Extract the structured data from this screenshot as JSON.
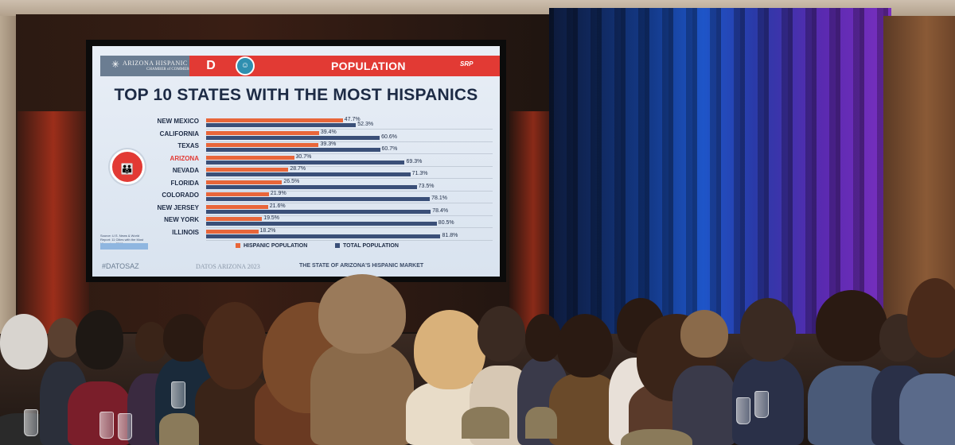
{
  "slide": {
    "org_name": "ARIZONA HISPANIC",
    "org_sub": "CHAMBER of COMMERCE",
    "section": "POPULATION",
    "sponsor": "SRP",
    "title": "TOP 10 STATES WITH THE MOST HISPANICS",
    "hashtag": "#DATOSAZ",
    "event": "DATOS ARIZONA 2023",
    "event_sub": "THE STATE OF ARIZONA'S HISPANIC MARKET",
    "source_note": "Source: U.S. News & World Report: 11 Cities with the Most Hispanics, 2018",
    "highlight_color": "#e23a34",
    "hispanic_color": "#e8663a",
    "total_color": "#3a4f78"
  },
  "chart_data": {
    "type": "bar",
    "orientation": "horizontal",
    "title": "TOP 10 STATES WITH THE MOST HISPANICS",
    "categories": [
      "NEW MEXICO",
      "CALIFORNIA",
      "TEXAS",
      "ARIZONA",
      "NEVADA",
      "FLORIDA",
      "COLORADO",
      "NEW JERSEY",
      "NEW YORK",
      "ILLINOIS"
    ],
    "highlight_category": "ARIZONA",
    "series": [
      {
        "name": "HISPANIC POPULATION",
        "values": [
          47.7,
          39.4,
          39.3,
          30.7,
          28.7,
          26.5,
          21.9,
          21.6,
          19.5,
          18.2
        ],
        "labels": [
          "47.7%",
          "39.4%",
          "39.3%",
          "30.7%",
          "28.7%",
          "26.5%",
          "21.9%",
          "21.6%",
          "19.5%",
          "18.2%"
        ]
      },
      {
        "name": "TOTAL POPULATION",
        "values": [
          52.3,
          60.6,
          60.7,
          69.3,
          71.3,
          73.5,
          78.1,
          78.4,
          80.5,
          81.8
        ],
        "labels": [
          "52.3%",
          "60.6%",
          "60.7%",
          "69.3%",
          "71.3%",
          "73.5%",
          "78.1%",
          "78.4%",
          "80.5%",
          "81.8%"
        ]
      }
    ],
    "xlim": [
      0,
      100
    ],
    "legend": "bottom"
  }
}
